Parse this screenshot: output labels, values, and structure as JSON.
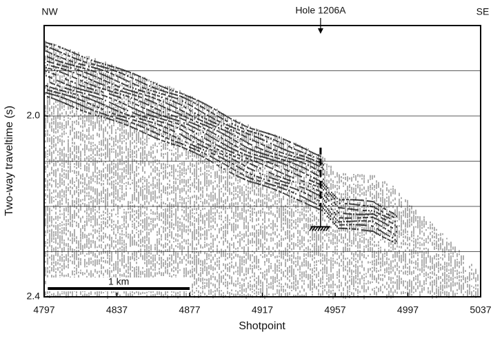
{
  "chart_data": {
    "type": "seismic-profile",
    "x_label": "Shotpoint",
    "y_label": "Two-way traveltime (s)",
    "xlim": [
      4797,
      5037
    ],
    "ylim": [
      1.8,
      2.4
    ],
    "xticks": [
      4797,
      4837,
      4877,
      4917,
      4957,
      4997,
      5037
    ],
    "yticks": [
      {
        "value": 2,
        "label": "2.0"
      },
      {
        "value": 2.4,
        "label": "2.4"
      }
    ],
    "grid_y": [
      1.9,
      2.0,
      2.1,
      2.2,
      2.3
    ],
    "direction_left": "NW",
    "direction_right": "SE",
    "hole": {
      "label": "Hole 1206A",
      "x": 4949,
      "dash": [
        2.07,
        2.2
      ],
      "base": 2.245
    },
    "scale_bar": {
      "label": "1 km",
      "x": [
        4799,
        4877
      ]
    }
  }
}
